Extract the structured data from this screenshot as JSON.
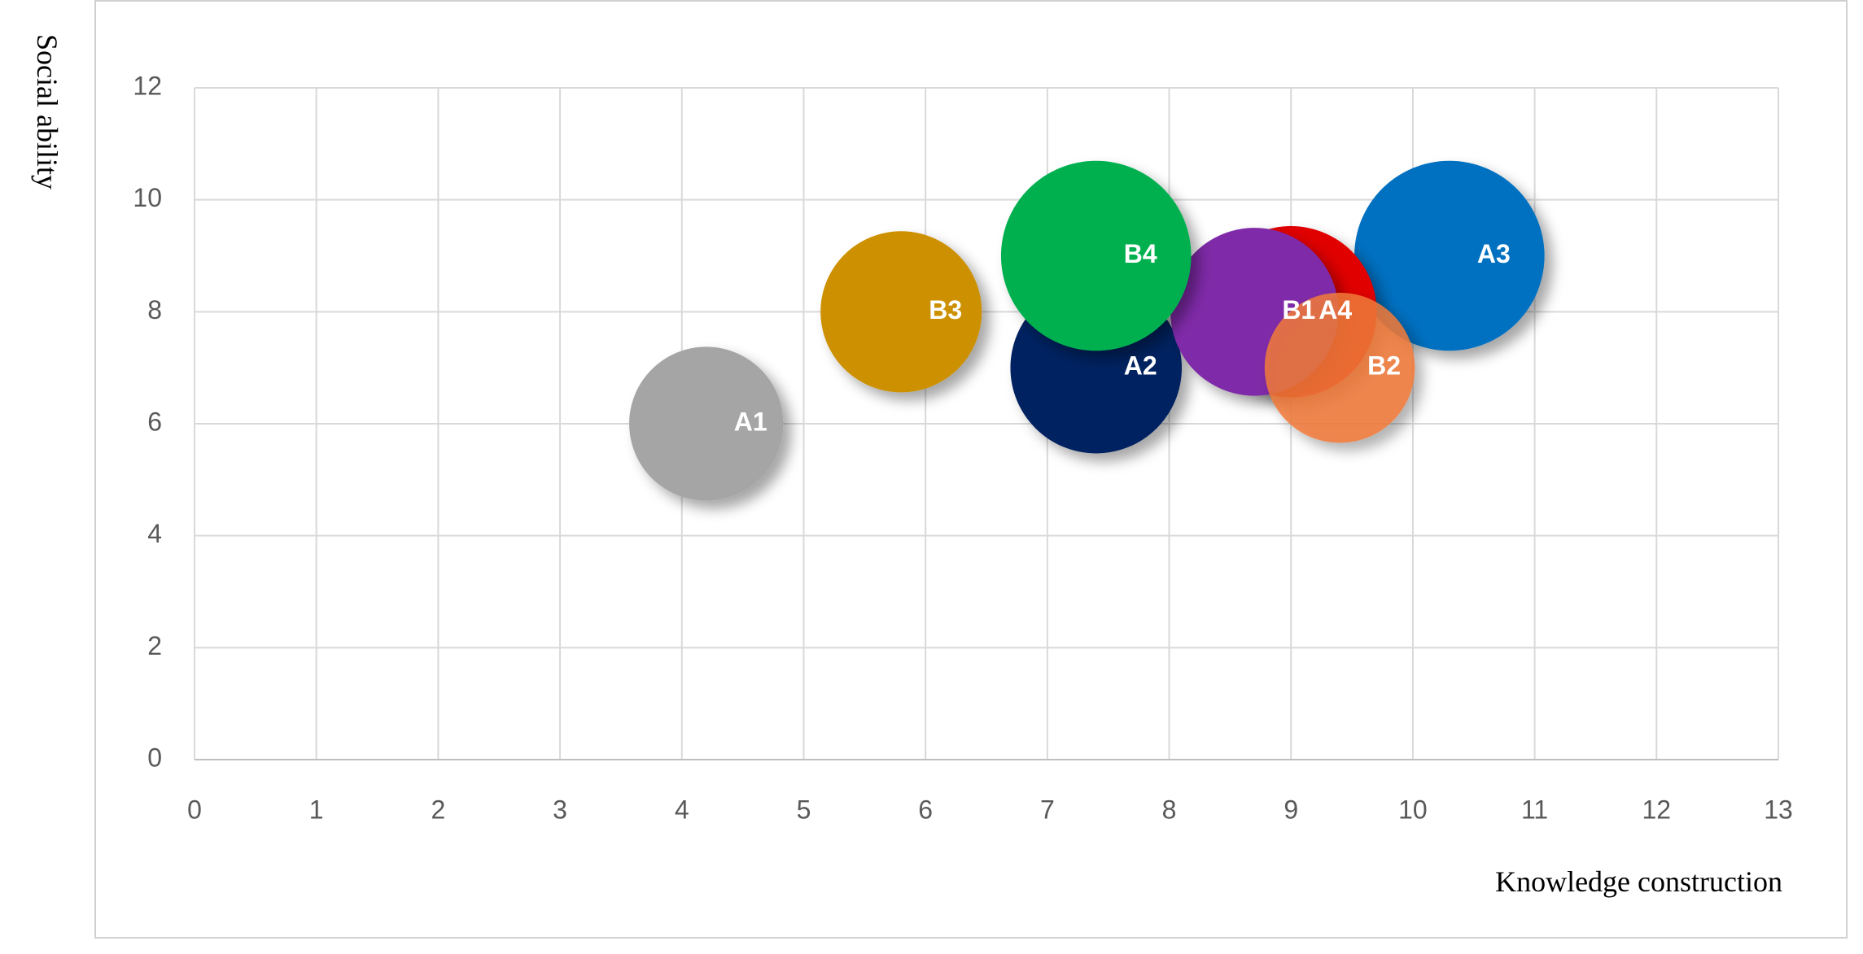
{
  "chart_data": {
    "type": "bubble",
    "x_label": "Knowledge construction",
    "y_label": "Social ability",
    "xlim": [
      0,
      13
    ],
    "xticks": [
      0,
      1,
      2,
      3,
      4,
      5,
      6,
      7,
      8,
      9,
      10,
      11,
      12,
      13
    ],
    "ylim": [
      0,
      12
    ],
    "yticks": [
      0,
      2,
      4,
      6,
      8,
      10,
      12
    ],
    "grid": true,
    "points": [
      {
        "label": "A1",
        "x": 4.2,
        "y": 6,
        "size": 42,
        "color": "#a5a5a5"
      },
      {
        "label": "A2",
        "x": 7.4,
        "y": 7,
        "size": 52,
        "color": "#002060"
      },
      {
        "label": "A3",
        "x": 10.3,
        "y": 9,
        "size": 64,
        "color": "#0070c0"
      },
      {
        "label": "A4",
        "x": 9.0,
        "y": 8,
        "size": 52,
        "color": "#e00000"
      },
      {
        "label": "B1",
        "x": 8.7,
        "y": 8,
        "size": 50,
        "color": "#7f2ba8"
      },
      {
        "label": "B2",
        "x": 9.4,
        "y": 7,
        "size": 40,
        "color": "#f07a3a"
      },
      {
        "label": "B3",
        "x": 5.8,
        "y": 8,
        "size": 46,
        "color": "#cc9000"
      },
      {
        "label": "B4",
        "x": 7.4,
        "y": 9,
        "size": 64,
        "color": "#00b050"
      }
    ]
  }
}
